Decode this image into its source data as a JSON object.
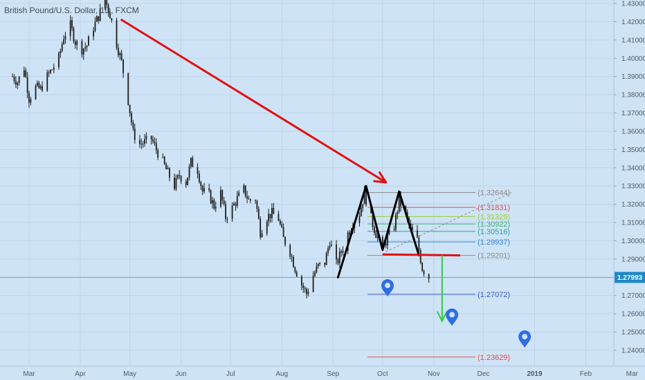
{
  "header": {
    "title": "British Pound/U.S. Dollar, 1D, FXCM"
  },
  "chart_data": {
    "type": "line",
    "title": "British Pound/U.S. Dollar, 1D, FXCM",
    "xlabel": "",
    "ylabel": "",
    "x_ticks": [
      "Mar",
      "Apr",
      "May",
      "Jun",
      "Jul",
      "Aug",
      "Sep",
      "Oct",
      "Nov",
      "Dec",
      "2019",
      "Feb",
      "Mar"
    ],
    "y_ticks": [
      "1.24000",
      "1.25000",
      "1.26000",
      "1.27000",
      "1.28000",
      "1.29000",
      "1.30000",
      "1.31000",
      "1.32000",
      "1.33000",
      "1.34000",
      "1.35000",
      "1.36000",
      "1.37000",
      "1.38000",
      "1.39000",
      "1.40000",
      "1.41000",
      "1.42000",
      "1.43000"
    ],
    "ylim": [
      1.2355,
      1.4345
    ],
    "current_price": {
      "value": 1.27993,
      "label": "1.27993",
      "color": "#1e88c8"
    },
    "series": [
      {
        "values": [
          [
            "2018-02-19",
            1.39
          ],
          [
            "2018-02-22",
            1.387
          ],
          [
            "2018-02-26",
            1.395
          ],
          [
            "2018-03-01",
            1.378
          ],
          [
            "2018-03-05",
            1.384
          ],
          [
            "2018-03-08",
            1.383
          ],
          [
            "2018-03-12",
            1.39
          ],
          [
            "2018-03-15",
            1.394
          ],
          [
            "2018-03-19",
            1.4
          ],
          [
            "2018-03-22",
            1.412
          ],
          [
            "2018-03-26",
            1.418
          ],
          [
            "2018-03-29",
            1.409
          ],
          [
            "2018-04-02",
            1.405
          ],
          [
            "2018-04-05",
            1.407
          ],
          [
            "2018-04-09",
            1.417
          ],
          [
            "2018-04-12",
            1.423
          ],
          [
            "2018-04-16",
            1.432
          ],
          [
            "2018-04-19",
            1.424
          ],
          [
            "2018-04-23",
            1.408
          ],
          [
            "2018-04-26",
            1.398
          ],
          [
            "2018-04-30",
            1.377
          ],
          [
            "2018-05-03",
            1.359
          ],
          [
            "2018-05-07",
            1.353
          ],
          [
            "2018-05-10",
            1.354
          ],
          [
            "2018-05-14",
            1.356
          ],
          [
            "2018-05-17",
            1.35
          ],
          [
            "2018-05-21",
            1.343
          ],
          [
            "2018-05-24",
            1.337
          ],
          [
            "2018-05-28",
            1.33
          ],
          [
            "2018-05-31",
            1.336
          ],
          [
            "2018-06-04",
            1.332
          ],
          [
            "2018-06-07",
            1.343
          ],
          [
            "2018-06-11",
            1.339
          ],
          [
            "2018-06-14",
            1.327
          ],
          [
            "2018-06-18",
            1.325
          ],
          [
            "2018-06-21",
            1.319
          ],
          [
            "2018-06-25",
            1.326
          ],
          [
            "2018-06-28",
            1.313
          ],
          [
            "2018-07-02",
            1.318
          ],
          [
            "2018-07-05",
            1.323
          ],
          [
            "2018-07-09",
            1.328
          ],
          [
            "2018-07-12",
            1.322
          ],
          [
            "2018-07-16",
            1.323
          ],
          [
            "2018-07-19",
            1.305
          ],
          [
            "2018-07-23",
            1.313
          ],
          [
            "2018-07-26",
            1.315
          ],
          [
            "2018-07-30",
            1.312
          ],
          [
            "2018-08-02",
            1.301
          ],
          [
            "2018-08-06",
            1.294
          ],
          [
            "2018-08-09",
            1.285
          ],
          [
            "2018-08-13",
            1.276
          ],
          [
            "2018-08-16",
            1.271
          ],
          [
            "2018-08-20",
            1.281
          ],
          [
            "2018-08-23",
            1.286
          ],
          [
            "2018-08-27",
            1.288
          ],
          [
            "2018-08-30",
            1.3
          ],
          [
            "2018-09-03",
            1.287
          ],
          [
            "2018-09-06",
            1.294
          ],
          [
            "2018-09-10",
            1.304
          ],
          [
            "2018-09-13",
            1.31
          ],
          [
            "2018-09-17",
            1.315
          ],
          [
            "2018-09-20",
            1.326
          ],
          [
            "2018-09-24",
            1.312
          ],
          [
            "2018-09-27",
            1.304
          ],
          [
            "2018-10-01",
            1.295
          ],
          [
            "2018-10-04",
            1.302
          ],
          [
            "2018-10-08",
            1.308
          ],
          [
            "2018-10-11",
            1.322
          ],
          [
            "2018-10-15",
            1.314
          ],
          [
            "2018-10-18",
            1.306
          ],
          [
            "2018-10-22",
            1.3
          ],
          [
            "2018-10-25",
            1.285
          ],
          [
            "2018-10-29",
            1.28
          ]
        ]
      }
    ],
    "fib_levels": [
      {
        "value": 1.32644,
        "label": "(1.32644)",
        "color": "#8a8a8a"
      },
      {
        "value": 1.31831,
        "label": "(1.31831)",
        "color": "#e0504a"
      },
      {
        "value": 1.31329,
        "label": "(1.31329)",
        "color": "#9acd32"
      },
      {
        "value": 1.30922,
        "label": "(1.30922)",
        "color": "#3cb371"
      },
      {
        "value": 1.30516,
        "label": "(1.30516)",
        "color": "#26a69a"
      },
      {
        "value": 1.29937,
        "label": "(1.29937)",
        "color": "#2e86de"
      },
      {
        "value": 1.29201,
        "label": "(1.29201)",
        "color": "#8a8a8a"
      },
      {
        "value": 1.27072,
        "label": "(1.27072)",
        "color": "#3a5bc7"
      },
      {
        "value": 1.23629,
        "label": "(1.23629)",
        "color": "#e0504a"
      }
    ],
    "double_top_points": [
      [
        "2018-09-04",
        1.28
      ],
      [
        "2018-09-21",
        1.33
      ],
      [
        "2018-10-01",
        1.295
      ],
      [
        "2018-10-11",
        1.327
      ],
      [
        "2018-10-23",
        1.292
      ]
    ],
    "neckline": {
      "start": [
        "2018-10-01",
        1.2925
      ],
      "end": [
        "2018-11-17",
        1.292
      ],
      "color": "#e01010"
    },
    "red_arrow": {
      "start": [
        "2018-04-26",
        1.421
      ],
      "end": [
        "2018-10-03",
        1.332
      ],
      "color": "#e01010"
    },
    "green_arrow": {
      "start": [
        "2018-11-06",
        1.292
      ],
      "end": [
        "2018-11-06",
        1.256
      ],
      "color": "#2ecc40"
    },
    "dashed_trend": {
      "start": [
        "2018-10-03",
        1.294
      ],
      "end": [
        "2018-12-18",
        1.3264
      ],
      "color": "#8a8a8a"
    },
    "markers": [
      {
        "date": "2018-10-04",
        "value": 1.274,
        "color": "#2f6de3"
      },
      {
        "date": "2018-11-12",
        "value": 1.258,
        "color": "#2f6de3"
      },
      {
        "date": "2018-12-26",
        "value": 1.246,
        "color": "#2f6de3"
      }
    ],
    "colors": {
      "background": "#cfe3f6",
      "candle": "#1c1c1c",
      "grid": "#bcd3ea",
      "axis_text": "#4a5a6a"
    },
    "grid": true
  }
}
